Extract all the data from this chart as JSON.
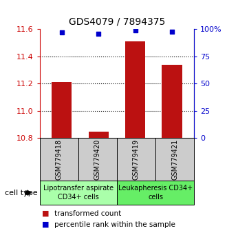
{
  "title": "GDS4079 / 7894375",
  "samples": [
    "GSM779418",
    "GSM779420",
    "GSM779419",
    "GSM779421"
  ],
  "bar_values": [
    11.21,
    10.845,
    11.51,
    11.34
  ],
  "percentile_values": [
    97,
    96,
    99,
    98
  ],
  "ylim_left": [
    10.8,
    11.6
  ],
  "ylim_right": [
    0,
    100
  ],
  "yticks_left": [
    10.8,
    11.0,
    11.2,
    11.4,
    11.6
  ],
  "yticks_right": [
    0,
    25,
    50,
    75,
    100
  ],
  "ytick_right_labels": [
    "0",
    "25",
    "50",
    "75",
    "100%"
  ],
  "bar_color": "#BB1111",
  "dot_color": "#0000CC",
  "bar_width": 0.55,
  "groups": [
    {
      "label": "Lipotransfer aspirate\nCD34+ cells",
      "color": "#aaffaa",
      "start": 0,
      "end": 2
    },
    {
      "label": "Leukapheresis CD34+\ncells",
      "color": "#66ee66",
      "start": 2,
      "end": 4
    }
  ],
  "legend_bar_label": "transformed count",
  "legend_dot_label": "percentile rank within the sample",
  "cell_type_label": "cell type",
  "background_color": "#ffffff",
  "tick_label_color_left": "#CC0000",
  "tick_label_color_right": "#0000CC",
  "base_value": 10.8,
  "sample_box_color": "#cccccc",
  "title_fontsize": 10,
  "tick_fontsize": 8,
  "sample_fontsize": 7,
  "group_fontsize": 7,
  "legend_fontsize": 7.5
}
